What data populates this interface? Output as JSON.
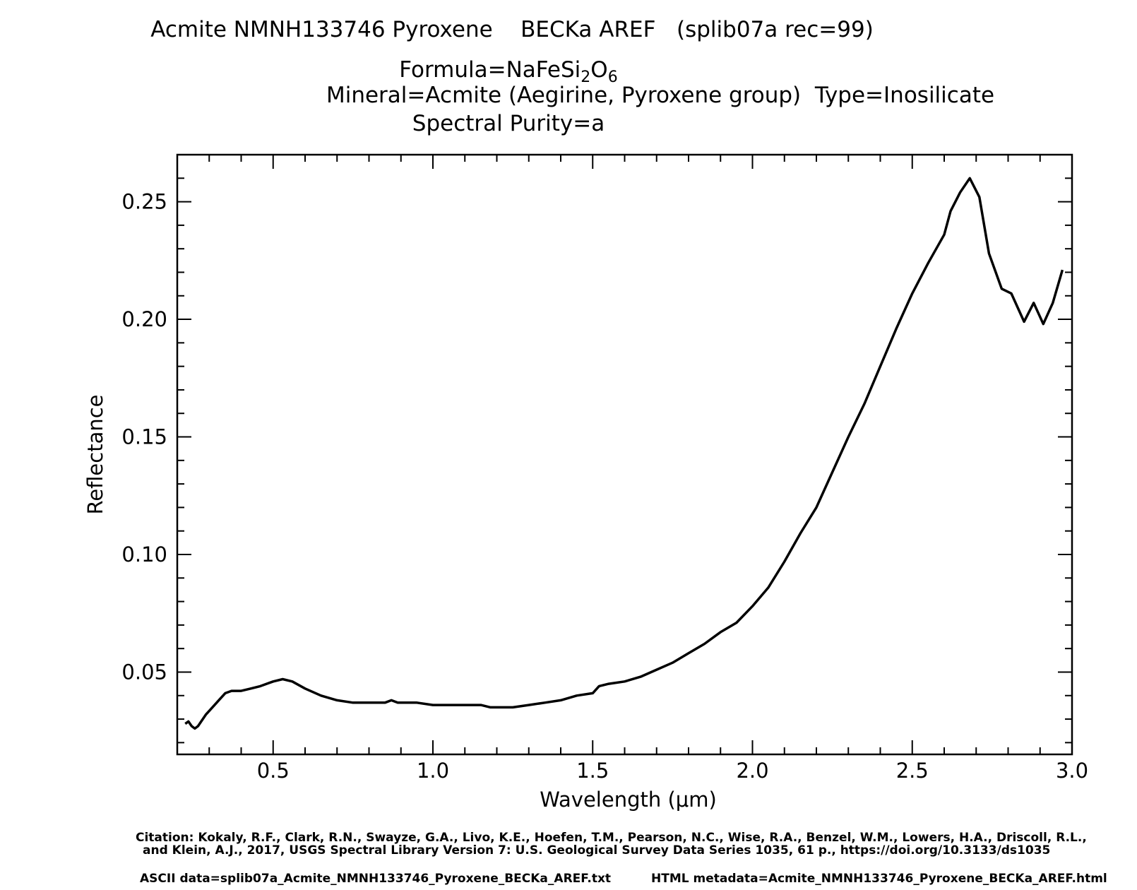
{
  "titles": {
    "line1": "Acmite NMNH133746 Pyroxene    BECKa AREF   (splib07a rec=99)",
    "formula_prefix": "Formula=NaFeSi",
    "formula_sub1": "2",
    "formula_mid": "O",
    "formula_sub2": "6",
    "line3": "Mineral=Acmite (Aegirine, Pyroxene group)  Type=Inosilicate",
    "line4": "Spectral Purity=a"
  },
  "footer": {
    "citation_line1": "Citation: Kokaly, R.F., Clark, R.N., Swayze, G.A., Livo, K.E., Hoefen, T.M., Pearson, N.C., Wise, R.A., Benzel, W.M., Lowers, H.A., Driscoll, R.L.,",
    "citation_line2": "and Klein, A.J., 2017, USGS Spectral Library Version 7: U.S. Geological Survey Data Series 1035, 61 p., https://doi.org/10.3133/ds1035",
    "ascii": "ASCII data=splib07a_Acmite_NMNH133746_Pyroxene_BECKa_AREF.txt",
    "html_meta": "HTML metadata=Acmite_NMNH133746_Pyroxene_BECKa_AREF.html"
  },
  "chart_data": {
    "type": "line",
    "xlabel": "Wavelength (μm)",
    "ylabel": "Reflectance",
    "xlim": [
      0.2,
      3.0
    ],
    "ylim": [
      0.015,
      0.27
    ],
    "x_ticks": [
      "0.5",
      "1.0",
      "1.5",
      "2.0",
      "2.5",
      "3.0"
    ],
    "y_ticks": [
      "0.05",
      "0.10",
      "0.15",
      "0.20",
      "0.25"
    ],
    "grid": false,
    "series": [
      {
        "x": [
          0.225,
          0.235,
          0.245,
          0.255,
          0.265,
          0.275,
          0.29,
          0.31,
          0.33,
          0.35,
          0.37,
          0.4,
          0.43,
          0.46,
          0.5,
          0.53,
          0.56,
          0.6,
          0.65,
          0.7,
          0.75,
          0.8,
          0.85,
          0.87,
          0.89,
          0.91,
          0.95,
          1.0,
          1.05,
          1.1,
          1.15,
          1.18,
          1.2,
          1.25,
          1.3,
          1.35,
          1.4,
          1.45,
          1.5,
          1.52,
          1.55,
          1.6,
          1.65,
          1.7,
          1.75,
          1.8,
          1.85,
          1.9,
          1.95,
          2.0,
          2.05,
          2.1,
          2.15,
          2.2,
          2.25,
          2.3,
          2.35,
          2.4,
          2.45,
          2.5,
          2.55,
          2.6,
          2.62,
          2.65,
          2.68,
          2.71,
          2.74,
          2.78,
          2.81,
          2.85,
          2.88,
          2.91,
          2.94,
          2.97
        ],
        "y": [
          0.028,
          0.029,
          0.027,
          0.026,
          0.027,
          0.029,
          0.032,
          0.035,
          0.038,
          0.041,
          0.042,
          0.042,
          0.043,
          0.044,
          0.046,
          0.047,
          0.046,
          0.043,
          0.04,
          0.038,
          0.037,
          0.037,
          0.037,
          0.038,
          0.037,
          0.037,
          0.037,
          0.036,
          0.036,
          0.036,
          0.036,
          0.035,
          0.035,
          0.035,
          0.036,
          0.037,
          0.038,
          0.04,
          0.041,
          0.044,
          0.045,
          0.046,
          0.048,
          0.051,
          0.054,
          0.058,
          0.062,
          0.067,
          0.071,
          0.078,
          0.086,
          0.097,
          0.109,
          0.12,
          0.135,
          0.15,
          0.164,
          0.18,
          0.196,
          0.211,
          0.224,
          0.236,
          0.246,
          0.254,
          0.26,
          0.252,
          0.228,
          0.213,
          0.211,
          0.199,
          0.207,
          0.198,
          0.207,
          0.221
        ]
      }
    ]
  }
}
